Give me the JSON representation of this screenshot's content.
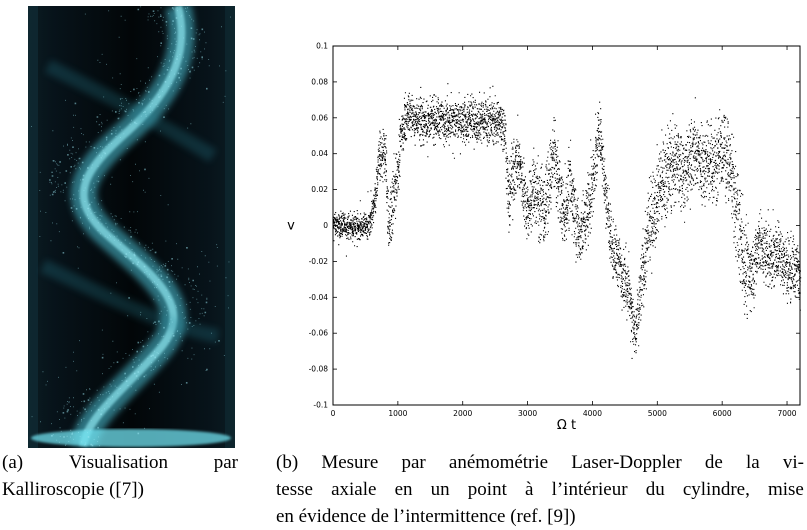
{
  "figure_a": {
    "caption_label": "(a)",
    "caption_words": [
      "Visualisation",
      "par"
    ],
    "caption_line2": "Kalliroscopie ([7])"
  },
  "figure_b": {
    "caption_line1": [
      "(b)",
      "Mesure",
      "par",
      "anémométrie",
      "Laser-Doppler",
      "de",
      "la",
      "vi-"
    ],
    "caption_line2": [
      "tesse",
      "axiale",
      "en",
      "un",
      "point",
      "à",
      "l’intérieur",
      "du",
      "cylindre,",
      "mise"
    ],
    "caption_line3": "en évidence de l’intermittence (ref. [9])"
  },
  "chart_data": {
    "type": "scatter",
    "xlabel": "Ω t",
    "ylabel": "v",
    "xlim": [
      0,
      7200
    ],
    "ylim": [
      -0.1,
      0.1
    ],
    "x_ticks": [
      "0",
      "1000",
      "2000",
      "3000",
      "4000",
      "5000",
      "6000",
      "7000"
    ],
    "y_ticks": [
      "-0.1",
      "-0.08",
      "-0.06",
      "-0.04",
      "-0.02",
      "0",
      "0.02",
      "0.04",
      "0.06",
      "0.08",
      "0.1"
    ],
    "grid": false,
    "marker_color": "#000000",
    "envelope": {
      "x": [
        0,
        300,
        550,
        650,
        700,
        800,
        850,
        950,
        1050,
        1150,
        1250,
        1400,
        1700,
        2000,
        2300,
        2550,
        2650,
        2700,
        2750,
        2850,
        3000,
        3100,
        3250,
        3400,
        3550,
        3650,
        3800,
        3950,
        4100,
        4200,
        4300,
        4400,
        4550,
        4650,
        4750,
        4900,
        5050,
        5250,
        5450,
        5550,
        5700,
        5850,
        6000,
        6100,
        6250,
        6350,
        6450,
        6550,
        6700,
        6850,
        7000,
        7200
      ],
      "upper": [
        0.01,
        0.008,
        0.01,
        0.03,
        0.06,
        0.065,
        0.02,
        0.05,
        0.07,
        0.08,
        0.075,
        0.075,
        0.078,
        0.076,
        0.078,
        0.075,
        0.072,
        0.04,
        0.055,
        0.065,
        0.035,
        0.055,
        0.04,
        0.07,
        0.03,
        0.055,
        0.02,
        0.045,
        0.078,
        0.045,
        0.01,
        0.005,
        -0.01,
        -0.04,
        0.0,
        0.04,
        0.06,
        0.07,
        0.06,
        0.075,
        0.07,
        0.07,
        0.075,
        0.07,
        0.04,
        0.015,
        0.0,
        0.02,
        0.01,
        0.01,
        0.005,
        0.0
      ],
      "lower": [
        -0.008,
        -0.01,
        -0.01,
        0.0,
        0.015,
        0.02,
        -0.025,
        -0.01,
        0.035,
        0.045,
        0.045,
        0.04,
        0.042,
        0.04,
        0.042,
        0.04,
        0.035,
        -0.02,
        0.0,
        0.01,
        -0.02,
        -0.01,
        -0.025,
        0.01,
        -0.02,
        -0.01,
        -0.035,
        -0.02,
        0.03,
        -0.01,
        -0.035,
        -0.045,
        -0.06,
        -0.085,
        -0.06,
        -0.03,
        -0.01,
        0.0,
        0.0,
        0.01,
        0.0,
        0.0,
        0.01,
        0.0,
        -0.04,
        -0.065,
        -0.055,
        -0.04,
        -0.045,
        -0.04,
        -0.05,
        -0.05
      ]
    }
  }
}
